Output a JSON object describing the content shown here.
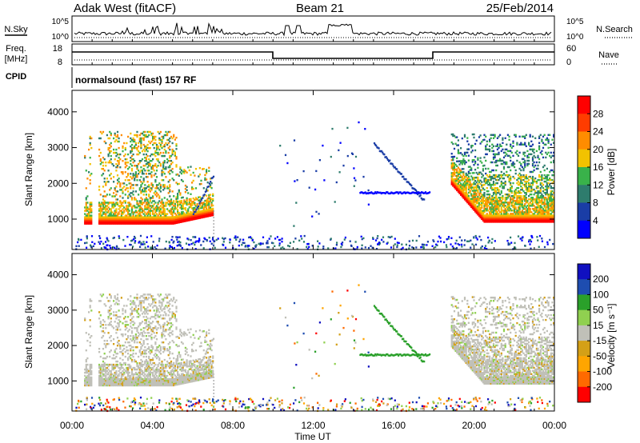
{
  "header": {
    "station": "Adak West (fitACF)",
    "beam": "Beam 21",
    "date": "25/Feb/2014"
  },
  "noise_panel": {
    "left_label": "N.Sky",
    "right_label": "N.Search",
    "left_ticks": [
      "10^5",
      "10^0"
    ],
    "right_ticks": [
      "10^5",
      "10^0"
    ]
  },
  "freq_panel": {
    "left_label_1": "Freq.",
    "left_label_2": "[MHz]",
    "right_label": "Nave",
    "left_ticks": [
      "18",
      "8"
    ],
    "right_ticks": [
      "60",
      "0"
    ],
    "cpid_label": "CPID",
    "cpid_text": "normalsound (fast) 157 RF"
  },
  "time_axis": {
    "ticks": [
      "00:00",
      "04:00",
      "08:00",
      "12:00",
      "16:00",
      "20:00",
      "00:00"
    ],
    "label": "Time UT"
  },
  "colors": {
    "power_scale": [
      "#0000ff",
      "#1a3da6",
      "#2e7c6d",
      "#39b24a",
      "#f2c200",
      "#ff8c00",
      "#ff3c00",
      "#ff0000"
    ],
    "velocity_scale": [
      "#ff0000",
      "#ff6a00",
      "#ffa500",
      "#d4a017",
      "#c0c0b8",
      "#90d050",
      "#2aa02a",
      "#1e4db0",
      "#1010c0"
    ]
  },
  "chart_data": [
    {
      "type": "heatmap",
      "title": "",
      "xlabel": "Time UT",
      "ylabel": "Slant Range [km]",
      "x_range_hours": [
        0,
        24
      ],
      "ylim": [
        150,
        4600
      ],
      "yticks": [
        "1000",
        "2000",
        "3000",
        "4000"
      ],
      "colorbar": {
        "label": "Power [dB]",
        "ticks": [
          "4",
          "8",
          "12",
          "16",
          "20",
          "24",
          "28"
        ],
        "range": [
          0,
          30
        ]
      },
      "features": [
        {
          "time_start": 0.5,
          "time_end": 7.0,
          "range_low": 900,
          "range_high": 3500,
          "peak_dB": 28
        },
        {
          "time_start": 14.3,
          "time_end": 17.8,
          "range_low": 1500,
          "range_high": 3200,
          "peak_dB": 6
        },
        {
          "time_start": 18.8,
          "time_end": 24.0,
          "range_low": 950,
          "range_high": 3500,
          "peak_dB": 28
        }
      ]
    },
    {
      "type": "heatmap",
      "title": "",
      "xlabel": "Time UT",
      "ylabel": "Slant Range [km]",
      "x_range_hours": [
        0,
        24
      ],
      "ylim": [
        150,
        4600
      ],
      "yticks": [
        "1000",
        "2000",
        "3000",
        "4000"
      ],
      "colorbar": {
        "label": "Velocity [m s⁻¹]",
        "ticks": [
          "200",
          "100",
          "50",
          "15",
          "-15",
          "-50",
          "-100",
          "-200"
        ],
        "range": [
          -250,
          250
        ]
      },
      "features": [
        {
          "time_start": 0.5,
          "time_end": 7.0,
          "range_low": 900,
          "range_high": 3500,
          "dominant_velocity": 0
        },
        {
          "time_start": 14.3,
          "time_end": 17.8,
          "range_low": 1500,
          "range_high": 3200,
          "dominant_velocity": 60
        },
        {
          "time_start": 18.8,
          "time_end": 24.0,
          "range_low": 950,
          "range_high": 3500,
          "dominant_velocity": 0
        }
      ]
    }
  ]
}
